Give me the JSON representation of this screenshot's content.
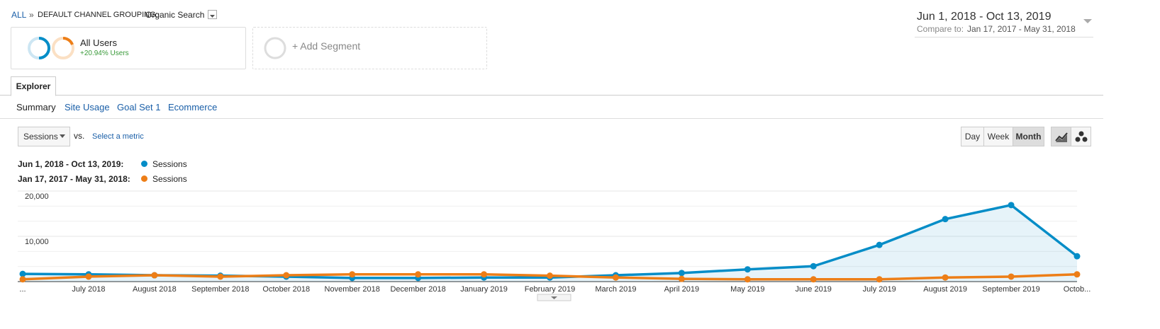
{
  "breadcrumb": {
    "root": "ALL",
    "separator": "»",
    "dimension": "DEFAULT CHANNEL GROUPING:",
    "value": "Organic Search"
  },
  "date_range": {
    "current": "Jun 1, 2018 - Oct 13, 2019",
    "compare_label": "Compare to:",
    "compare": "Jan 17, 2017 - May 31, 2018"
  },
  "segments": {
    "name": "All Users",
    "change": "+20.94% Users",
    "add": "+ Add Segment"
  },
  "tabs": {
    "main": "Explorer",
    "sub": [
      "Summary",
      "Site Usage",
      "Goal Set 1",
      "Ecommerce"
    ]
  },
  "controls": {
    "metric": "Sessions",
    "vs": "vs.",
    "select_metric": "Select a metric",
    "granularity": [
      "Day",
      "Week",
      "Month"
    ]
  },
  "chart_data": {
    "type": "line",
    "categories": [
      "...",
      "July 2018",
      "August 2018",
      "September 2018",
      "October 2018",
      "November 2018",
      "December 2018",
      "January 2019",
      "February 2019",
      "March 2019",
      "April 2019",
      "May 2019",
      "June 2019",
      "July 2019",
      "August 2019",
      "September 2019",
      "Octob..."
    ],
    "series": [
      {
        "period": "Jun 1, 2018 - Oct 13, 2019:",
        "name": "Sessions",
        "color": "#058dc7",
        "area": true,
        "values": [
          1700,
          1600,
          1400,
          1300,
          1100,
          800,
          800,
          900,
          900,
          1400,
          1900,
          2700,
          3400,
          8100,
          13800,
          16900,
          5600
        ]
      },
      {
        "period": "Jan 17, 2017 - May 31, 2018:",
        "name": "Sessions",
        "color": "#ed7e17",
        "area": false,
        "values": [
          500,
          1100,
          1400,
          1100,
          1400,
          1600,
          1600,
          1600,
          1300,
          900,
          600,
          500,
          500,
          500,
          900,
          1100,
          1600
        ]
      }
    ],
    "ylim": [
      0,
      20000
    ],
    "yticks": [
      {
        "value": 10000,
        "label": "10,000"
      },
      {
        "value": 20000,
        "label": "20,000"
      }
    ],
    "grid": true
  }
}
